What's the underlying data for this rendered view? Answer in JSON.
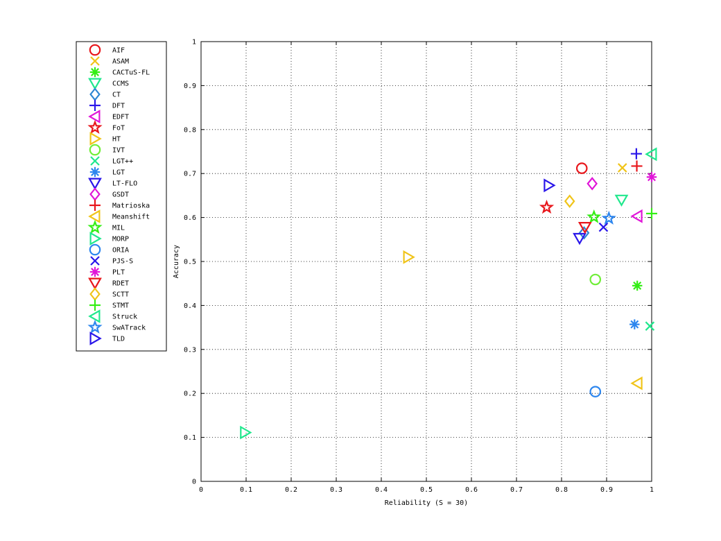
{
  "chart_data": {
    "type": "scatter",
    "xlabel": "Reliability (S = 30)",
    "ylabel": "Accuracy",
    "xlim": [
      0,
      1
    ],
    "ylim": [
      0,
      1
    ],
    "xticks": [
      0,
      0.1,
      0.2,
      0.3,
      0.4,
      0.5,
      0.6,
      0.7,
      0.8,
      0.9,
      1
    ],
    "xtick_labels": [
      "0",
      "0.1",
      "0.2",
      "0.3",
      "0.4",
      "0.5",
      "0.6",
      "0.7",
      "0.8",
      "0.9",
      "1"
    ],
    "yticks": [
      0,
      0.1,
      0.2,
      0.3,
      0.4,
      0.5,
      0.6,
      0.7,
      0.8,
      0.9,
      1
    ],
    "ytick_labels": [
      "0",
      "0.1",
      "0.2",
      "0.3",
      "0.4",
      "0.5",
      "0.6",
      "0.7",
      "0.8",
      "0.9",
      "1"
    ],
    "grid": true,
    "legend_position": "outside-left",
    "series": [
      {
        "name": "AIF",
        "marker": "circle",
        "color": "#e8161b",
        "x": 0.845,
        "y": 0.712
      },
      {
        "name": "ASAM",
        "marker": "x",
        "color": "#f0c419",
        "x": 0.935,
        "y": 0.713
      },
      {
        "name": "CACTuS-FL",
        "marker": "asterisk",
        "color": "#33ee14",
        "x": 0.968,
        "y": 0.445
      },
      {
        "name": "CCMS",
        "marker": "triangle-down",
        "color": "#20e88d",
        "x": 0.933,
        "y": 0.64
      },
      {
        "name": "CT",
        "marker": "diamond",
        "color": "#2c86d2",
        "x": 0.85,
        "y": 0.565
      },
      {
        "name": "DFT",
        "marker": "plus",
        "color": "#2a16ea",
        "x": 0.966,
        "y": 0.745
      },
      {
        "name": "EDFT",
        "marker": "triangle-left",
        "color": "#e015d8",
        "x": 0.968,
        "y": 0.603
      },
      {
        "name": "FoT",
        "marker": "pentagram",
        "color": "#e8161b",
        "x": 0.767,
        "y": 0.623
      },
      {
        "name": "HT",
        "marker": "triangle-right",
        "color": "#f0c419",
        "x": 0.46,
        "y": 0.51
      },
      {
        "name": "IVT",
        "marker": "circle",
        "color": "#70ee38",
        "x": 0.875,
        "y": 0.459
      },
      {
        "name": "LGT++",
        "marker": "x",
        "color": "#20e88d",
        "x": 0.996,
        "y": 0.353
      },
      {
        "name": "LGT",
        "marker": "asterisk",
        "color": "#2d86ee",
        "x": 0.962,
        "y": 0.357
      },
      {
        "name": "LT-FLO",
        "marker": "triangle-down",
        "color": "#2a16ea",
        "x": 0.84,
        "y": 0.553
      },
      {
        "name": "GSDT",
        "marker": "diamond",
        "color": "#e015d8",
        "x": 0.868,
        "y": 0.677
      },
      {
        "name": "Matrioska",
        "marker": "plus",
        "color": "#e8161b",
        "x": 0.967,
        "y": 0.717
      },
      {
        "name": "Meanshift",
        "marker": "triangle-left",
        "color": "#f0c419",
        "x": 0.968,
        "y": 0.223
      },
      {
        "name": "MIL",
        "marker": "pentagram",
        "color": "#33ee14",
        "x": 0.872,
        "y": 0.601
      },
      {
        "name": "MORP",
        "marker": "triangle-right",
        "color": "#20e88d",
        "x": 0.098,
        "y": 0.111
      },
      {
        "name": "ORIA",
        "marker": "circle",
        "color": "#2d86ee",
        "x": 0.875,
        "y": 0.204
      },
      {
        "name": "PJS-S",
        "marker": "x",
        "color": "#2a16ea",
        "x": 0.893,
        "y": 0.578
      },
      {
        "name": "PLT",
        "marker": "asterisk",
        "color": "#e015d8",
        "x": 1.0,
        "y": 0.692
      },
      {
        "name": "RDET",
        "marker": "triangle-down",
        "color": "#e8161b",
        "x": 0.852,
        "y": 0.578
      },
      {
        "name": "SCTT",
        "marker": "diamond",
        "color": "#f0c419",
        "x": 0.818,
        "y": 0.637
      },
      {
        "name": "STMT",
        "marker": "plus",
        "color": "#33ee14",
        "x": 1.0,
        "y": 0.609
      },
      {
        "name": "Struck",
        "marker": "triangle-left",
        "color": "#20e88d",
        "x": 1.0,
        "y": 0.744
      },
      {
        "name": "SwATrack",
        "marker": "pentagram",
        "color": "#2d86ee",
        "x": 0.905,
        "y": 0.598
      },
      {
        "name": "TLD",
        "marker": "triangle-right",
        "color": "#2a16ea",
        "x": 0.772,
        "y": 0.673
      }
    ]
  }
}
